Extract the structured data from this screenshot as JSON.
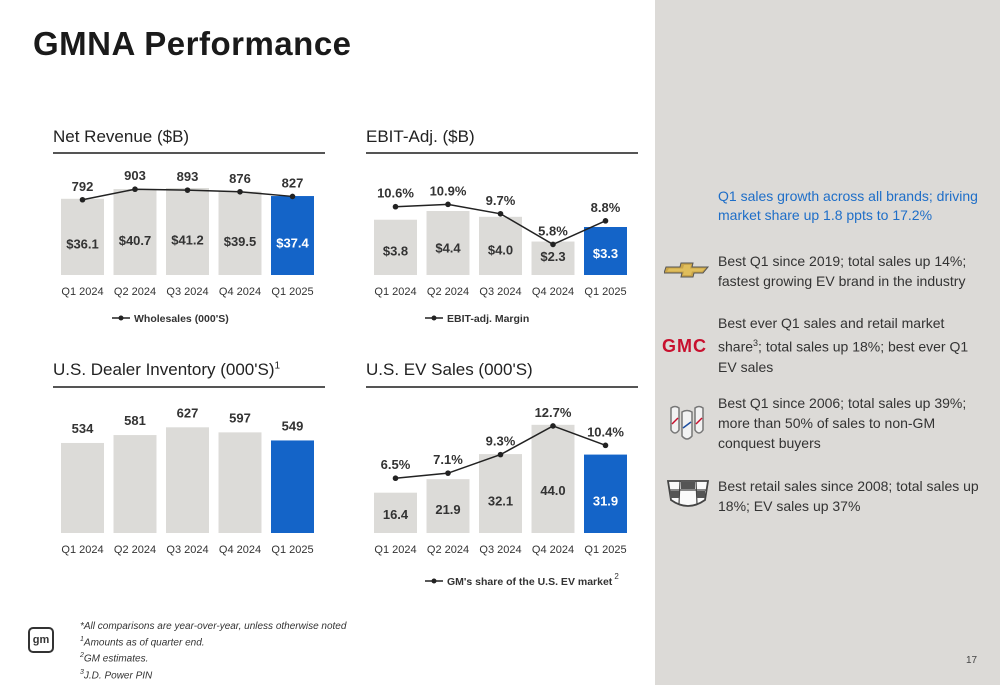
{
  "page_title": "GMNA Performance",
  "chart_data": [
    {
      "id": "revenue",
      "type": "bar",
      "title": "Net Revenue ($B)",
      "categories": [
        "Q1 2024",
        "Q2 2024",
        "Q3 2024",
        "Q4 2024",
        "Q1 2025"
      ],
      "series": [
        {
          "values": [
            36.1,
            40.7,
            41.2,
            39.5,
            37.4
          ],
          "labels": [
            "$36.1",
            "$40.7",
            "$41.2",
            "$39.5",
            "$37.4"
          ]
        }
      ],
      "line": {
        "name": "Wholesales (000'S)",
        "values": [
          792,
          903,
          893,
          876,
          827
        ],
        "labels": [
          "792",
          "903",
          "893",
          "876",
          "827"
        ]
      },
      "ylim": [
        0,
        45
      ],
      "line_ylim": [
        0,
        1000
      ],
      "highlight_index": 4
    },
    {
      "id": "ebit",
      "type": "bar",
      "title": "EBIT-Adj. ($B)",
      "categories": [
        "Q1 2024",
        "Q2 2024",
        "Q3 2024",
        "Q4 2024",
        "Q1 2025"
      ],
      "series": [
        {
          "values": [
            3.8,
            4.4,
            4.0,
            2.3,
            3.3
          ],
          "labels": [
            "$3.8",
            "$4.4",
            "$4.0",
            "$2.3",
            "$3.3"
          ]
        }
      ],
      "line": {
        "name": "EBIT-adj. Margin",
        "values": [
          10.6,
          10.9,
          9.7,
          5.8,
          8.8
        ],
        "labels": [
          "10.6%",
          "10.9%",
          "9.7%",
          "5.8%",
          "8.8%"
        ]
      },
      "ylim": [
        0,
        5.5
      ],
      "line_ylim": [
        0,
        14
      ],
      "highlight_index": 4
    },
    {
      "id": "inventory",
      "type": "bar",
      "title": "U.S. Dealer Inventory (000'S)",
      "title_sup": "1",
      "categories": [
        "Q1 2024",
        "Q2 2024",
        "Q3 2024",
        "Q4 2024",
        "Q1 2025"
      ],
      "series": [
        {
          "values": [
            534,
            581,
            627,
            597,
            549
          ],
          "labels": [
            "534",
            "581",
            "627",
            "597",
            "549"
          ]
        }
      ],
      "ylim": [
        0,
        700
      ],
      "highlight_index": 4
    },
    {
      "id": "ev",
      "type": "bar",
      "title": "U.S. EV Sales (000'S)",
      "categories": [
        "Q1 2024",
        "Q2 2024",
        "Q3 2024",
        "Q4 2024",
        "Q1 2025"
      ],
      "series": [
        {
          "values": [
            16.4,
            21.9,
            32.1,
            44.0,
            31.9
          ],
          "labels": [
            "16.4",
            "21.9",
            "32.1",
            "44.0",
            "31.9"
          ]
        }
      ],
      "line": {
        "name": "GM's share of the U.S. EV market",
        "name_sup": "2",
        "values": [
          6.5,
          7.1,
          9.3,
          12.7,
          10.4
        ],
        "labels": [
          "6.5%",
          "7.1%",
          "9.3%",
          "12.7%",
          "10.4%"
        ]
      },
      "ylim": [
        0,
        48
      ],
      "line_ylim": [
        0,
        14
      ],
      "highlight_index": 4
    }
  ],
  "sidebar": {
    "headline": "Q1 sales growth across all brands; driving market share up 1.8 ppts to 17.2%",
    "brands": [
      {
        "logo": "chevrolet-bowtie-icon",
        "text": "Best Q1 since 2019; total sales up 14%; fastest growing EV brand in the industry"
      },
      {
        "logo": "gmc-logo",
        "logo_text": "GMC",
        "text_before_sup": "Best ever Q1 sales and retail market share",
        "sup": "3",
        "text_after_sup": "; total sales up 18%; best ever Q1 EV sales"
      },
      {
        "logo": "buick-tri-shield-icon",
        "text": "Best Q1 since 2006; total sales up 39%; more than 50% of sales to non-GM conquest  buyers"
      },
      {
        "logo": "cadillac-crest-icon",
        "text": "Best retail sales since 2008; total sales up 18%; EV sales up 37%"
      }
    ]
  },
  "footnotes": {
    "main": "*All comparisons are year-over-year, unless otherwise noted",
    "n1_sup": "1",
    "n1": "Amounts as of quarter end.",
    "n2_sup": "2",
    "n2": "GM estimates.",
    "n3_sup": "3",
    "n3": "J.D. Power PIN"
  },
  "gm_logo_text": "gm",
  "page_number": "17",
  "colors": {
    "bar": "#dcdbd8",
    "highlight": "#1464c8",
    "text": "#333333",
    "line": "#222222",
    "headline": "#1e6ec8",
    "sidebar_bg": "#dcdad7"
  }
}
